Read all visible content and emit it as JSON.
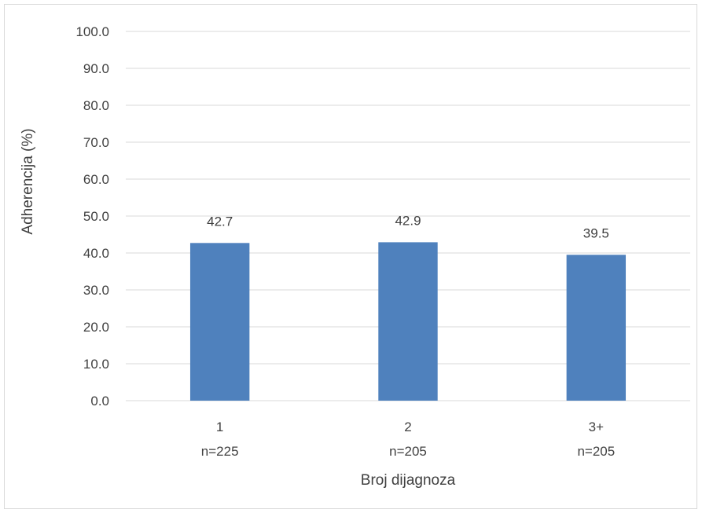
{
  "chart_data": {
    "type": "bar",
    "title": "",
    "xlabel": "Broj dijagnoza",
    "ylabel": "Adherencija (%)",
    "ylim": [
      0,
      100
    ],
    "yticks": [
      "0.0",
      "10.0",
      "20.0",
      "30.0",
      "40.0",
      "50.0",
      "60.0",
      "70.0",
      "80.0",
      "90.0",
      "100.0"
    ],
    "grid": true,
    "categories": [
      "1",
      "2",
      "3+"
    ],
    "category_sublabels": [
      "n=225",
      "n=205",
      "n=205"
    ],
    "values": [
      42.7,
      42.9,
      39.5
    ],
    "value_labels": [
      "42.7",
      "42.9",
      "39.5"
    ],
    "bar_color": "#4f81bd",
    "grid_color": "#d9d9d9"
  }
}
